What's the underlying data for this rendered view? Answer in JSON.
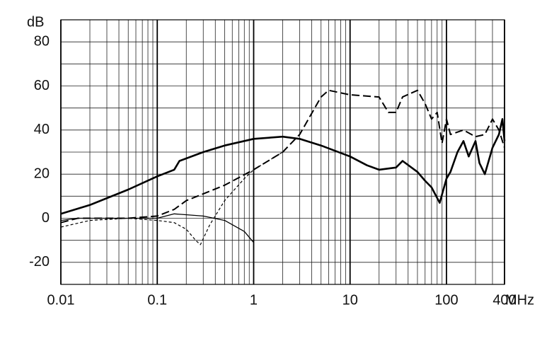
{
  "chart_data": {
    "type": "line",
    "y_label": "dB",
    "x_label": "MHz",
    "log_x": true,
    "grid": true,
    "xlim": [
      0.01,
      400
    ],
    "xticks": [
      0.01,
      0.1,
      1,
      10,
      100,
      400
    ],
    "ylim": [
      -30,
      90
    ],
    "yticks": [
      -20,
      0,
      20,
      40,
      60,
      80
    ],
    "series": [
      {
        "color": "#000000",
        "style": "solid-thick",
        "x": [
          0.01,
          0.02,
          0.05,
          0.1,
          0.15,
          0.17,
          0.3,
          0.5,
          1,
          2,
          3,
          5,
          10,
          15,
          20,
          30,
          35,
          50,
          60,
          70,
          85,
          100,
          110,
          130,
          150,
          170,
          200,
          220,
          250,
          300,
          350,
          380,
          400
        ],
        "values": [
          2,
          6,
          13,
          19,
          22,
          26,
          30,
          33,
          36,
          37,
          36,
          33,
          28,
          24,
          22,
          23,
          26,
          21,
          17,
          14,
          7,
          18,
          21,
          30,
          35,
          28,
          35,
          25,
          20,
          32,
          38,
          45,
          35
        ]
      },
      {
        "color": "#000000",
        "style": "long-dash",
        "x": [
          0.01,
          0.015,
          0.05,
          0.1,
          0.15,
          0.2,
          0.5,
          1,
          2,
          3,
          5,
          6,
          10,
          20,
          25,
          30,
          35,
          50,
          60,
          70,
          80,
          90,
          100,
          110,
          150,
          200,
          250,
          300,
          350,
          400
        ],
        "values": [
          -2,
          0,
          0,
          1,
          4,
          8,
          15,
          22,
          30,
          38,
          55,
          58,
          56,
          55,
          48,
          48,
          55,
          58,
          52,
          45,
          48,
          34,
          45,
          38,
          40,
          37,
          38,
          45,
          40,
          32
        ]
      },
      {
        "color": "#000000",
        "style": "short-dash",
        "x": [
          0.01,
          0.02,
          0.05,
          0.1,
          0.15,
          0.2,
          0.25,
          0.28,
          0.35,
          0.5,
          0.8,
          1,
          2
        ],
        "values": [
          -4,
          -1,
          0,
          -1,
          -2,
          -5,
          -10,
          -12,
          -3,
          8,
          18,
          22,
          30
        ]
      },
      {
        "color": "#000000",
        "style": "solid-thin",
        "x": [
          0.01,
          0.015,
          0.05,
          0.1,
          0.15,
          0.3,
          0.5,
          0.8,
          1
        ],
        "values": [
          -1,
          0,
          0,
          0,
          2,
          1,
          -1,
          -6,
          -11
        ]
      }
    ]
  }
}
